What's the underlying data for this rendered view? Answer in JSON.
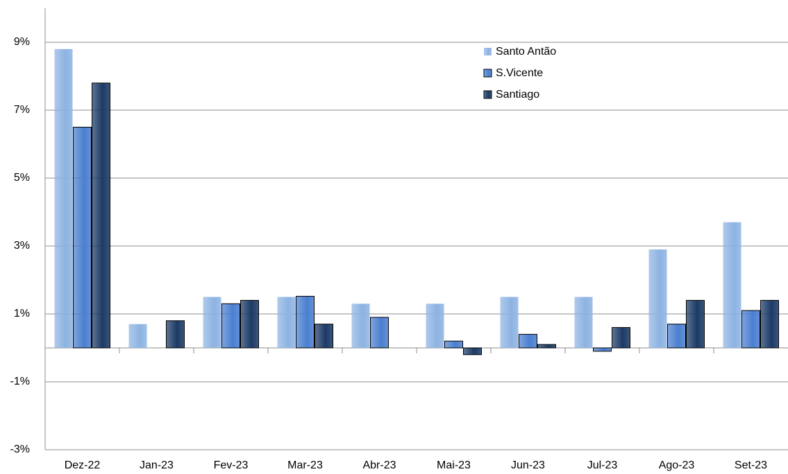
{
  "chart_data": {
    "type": "bar",
    "categories": [
      "Dez-22",
      "Jan-23",
      "Fev-23",
      "Mar-23",
      "Abr-23",
      "Mai-23",
      "Jun-23",
      "Jul-23",
      "Ago-23",
      "Set-23"
    ],
    "series": [
      {
        "name": "Santo Antão",
        "color": "#8db3e2",
        "values": [
          8.8,
          0.7,
          1.5,
          1.5,
          1.3,
          1.3,
          1.5,
          1.5,
          2.9,
          3.7
        ]
      },
      {
        "name": "S.Vicente",
        "color": "#4a7fd0",
        "values": [
          6.5,
          0,
          1.3,
          1.52,
          0.9,
          0.2,
          0.4,
          -0.1,
          0.7,
          1.1
        ]
      },
      {
        "name": "Santiago",
        "color": "#1b3a66",
        "values": [
          7.8,
          0.8,
          1.4,
          0.7,
          0,
          -0.2,
          0.1,
          0.6,
          1.4,
          1.4
        ]
      }
    ],
    "ylim": [
      -3,
      10
    ],
    "yticks": [
      {
        "value": -3,
        "label": "-3%"
      },
      {
        "value": -1,
        "label": "-1%"
      },
      {
        "value": 1,
        "label": "1%"
      },
      {
        "value": 3,
        "label": "3%"
      },
      {
        "value": 5,
        "label": "5%"
      },
      {
        "value": 7,
        "label": "7%"
      },
      {
        "value": 9,
        "label": "9%"
      }
    ],
    "grid": true,
    "legend": "top-right"
  }
}
